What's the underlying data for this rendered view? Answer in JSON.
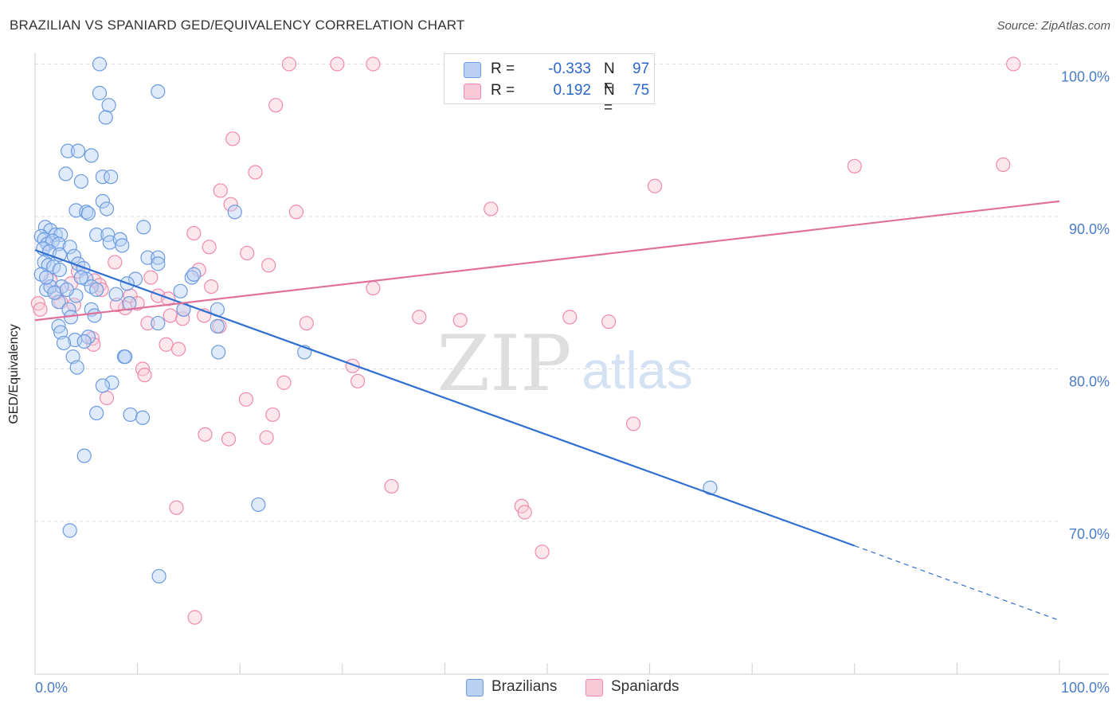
{
  "title": "BRAZILIAN VS SPANIARD GED/EQUIVALENCY CORRELATION CHART",
  "source": "Source: ZipAtlas.com",
  "watermark": {
    "zip": "ZIP",
    "atlas": "atlas"
  },
  "colors": {
    "blue": "#6b9be0",
    "blue_fill": "#b9d0f3",
    "blue_line": "#2f6fd1",
    "pink": "#f08aaa",
    "pink_fill": "#f9c9d7",
    "pink_line": "#e0709a",
    "tick": "#4a7cc9",
    "grid": "#dddddd"
  },
  "legend": {
    "rows": [
      {
        "r_label": "R =",
        "r_value": "-0.333",
        "n_label": "N =",
        "n_value": "97",
        "color": "#b9d0f3",
        "border": "#6b9be0"
      },
      {
        "r_label": "R =",
        "r_value": "0.192",
        "n_label": "N =",
        "n_value": "75",
        "color": "#f9c9d7",
        "border": "#f08aaa"
      }
    ]
  },
  "bottom_legend": [
    {
      "label": "Brazilians",
      "color": "#b9d0f3",
      "border": "#6b9be0"
    },
    {
      "label": "Spaniards",
      "color": "#f9c9d7",
      "border": "#f08aaa"
    }
  ],
  "chart_data": {
    "type": "scatter",
    "title": "BRAZILIAN VS SPANIARD GED/EQUIVALENCY CORRELATION CHART",
    "xlabel": "",
    "ylabel": "GED/Equivalency",
    "xlim": [
      0,
      100
    ],
    "ylim": [
      60,
      101
    ],
    "x_tick_labels": [
      "0.0%",
      "100.0%"
    ],
    "y_ticks": [
      70,
      80,
      90,
      100
    ],
    "y_tick_labels": [
      "70.0%",
      "80.0%",
      "90.0%",
      "100.0%"
    ],
    "grid": true,
    "legend_placement": "top-center",
    "series": [
      {
        "name": "Brazilians",
        "r": -0.333,
        "n": 97,
        "trend": {
          "x0": 0,
          "y0": 87.8,
          "x1": 80,
          "y1": 68.4,
          "dash_to_x": 100,
          "dash_to_y": 63.5
        },
        "points": [
          [
            6.3,
            100
          ],
          [
            6.3,
            98.1
          ],
          [
            12.0,
            98.2
          ],
          [
            7.2,
            97.3
          ],
          [
            6.9,
            96.5
          ],
          [
            3.2,
            94.3
          ],
          [
            4.2,
            94.3
          ],
          [
            5.5,
            94.0
          ],
          [
            3.0,
            92.8
          ],
          [
            6.6,
            92.6
          ],
          [
            7.4,
            92.6
          ],
          [
            4.5,
            92.3
          ],
          [
            6.6,
            91.0
          ],
          [
            7.0,
            90.5
          ],
          [
            4.0,
            90.4
          ],
          [
            5.0,
            90.3
          ],
          [
            5.2,
            90.2
          ],
          [
            19.5,
            90.3
          ],
          [
            1.0,
            89.3
          ],
          [
            1.5,
            89.1
          ],
          [
            2.0,
            88.8
          ],
          [
            2.5,
            88.8
          ],
          [
            6.0,
            88.8
          ],
          [
            7.1,
            88.8
          ],
          [
            10.6,
            89.3
          ],
          [
            0.6,
            88.7
          ],
          [
            0.9,
            88.5
          ],
          [
            1.2,
            88.2
          ],
          [
            1.7,
            88.4
          ],
          [
            2.3,
            88.2
          ],
          [
            3.4,
            88.0
          ],
          [
            7.3,
            88.3
          ],
          [
            8.3,
            88.5
          ],
          [
            8.5,
            88.1
          ],
          [
            0.8,
            87.9
          ],
          [
            1.4,
            87.7
          ],
          [
            2.4,
            87.5
          ],
          [
            3.8,
            87.4
          ],
          [
            11.0,
            87.3
          ],
          [
            12.0,
            87.3
          ],
          [
            0.9,
            87.0
          ],
          [
            1.3,
            86.8
          ],
          [
            1.8,
            86.7
          ],
          [
            2.4,
            86.5
          ],
          [
            4.2,
            86.9
          ],
          [
            4.7,
            86.6
          ],
          [
            5.0,
            85.9
          ],
          [
            12.0,
            86.9
          ],
          [
            9.8,
            85.9
          ],
          [
            15.3,
            86.0
          ],
          [
            15.5,
            86.2
          ],
          [
            1.1,
            85.2
          ],
          [
            1.5,
            85.4
          ],
          [
            2.6,
            85.4
          ],
          [
            5.5,
            85.4
          ],
          [
            6.0,
            85.2
          ],
          [
            14.2,
            85.1
          ],
          [
            4.0,
            84.8
          ],
          [
            2.3,
            84.4
          ],
          [
            3.3,
            83.9
          ],
          [
            5.5,
            83.9
          ],
          [
            9.2,
            84.3
          ],
          [
            14.5,
            83.9
          ],
          [
            17.8,
            83.9
          ],
          [
            3.5,
            83.4
          ],
          [
            12.0,
            83.0
          ],
          [
            2.3,
            82.8
          ],
          [
            17.8,
            82.8
          ],
          [
            2.5,
            82.4
          ],
          [
            5.2,
            82.1
          ],
          [
            3.9,
            81.9
          ],
          [
            2.8,
            81.7
          ],
          [
            4.8,
            81.8
          ],
          [
            17.9,
            81.1
          ],
          [
            26.3,
            81.1
          ],
          [
            8.7,
            80.8
          ],
          [
            3.7,
            80.8
          ],
          [
            8.8,
            80.8
          ],
          [
            4.1,
            80.1
          ],
          [
            7.5,
            79.1
          ],
          [
            6.6,
            78.9
          ],
          [
            9.3,
            77.0
          ],
          [
            10.5,
            76.8
          ],
          [
            6.0,
            77.1
          ],
          [
            4.8,
            74.3
          ],
          [
            21.8,
            71.1
          ],
          [
            65.9,
            72.2
          ],
          [
            3.4,
            69.4
          ],
          [
            12.1,
            66.4
          ],
          [
            0.6,
            86.2
          ],
          [
            1.1,
            86.0
          ],
          [
            1.9,
            85.0
          ],
          [
            3.1,
            85.2
          ],
          [
            4.5,
            86.0
          ],
          [
            5.8,
            83.5
          ],
          [
            7.9,
            84.9
          ],
          [
            9.0,
            85.6
          ]
        ]
      },
      {
        "name": "Spaniards",
        "r": 0.192,
        "n": 75,
        "trend": {
          "x0": 0,
          "y0": 83.2,
          "x1": 100,
          "y1": 91.0
        },
        "points": [
          [
            24.8,
            100
          ],
          [
            29.5,
            100
          ],
          [
            33.0,
            100
          ],
          [
            41.0,
            100
          ],
          [
            49.0,
            100
          ],
          [
            95.5,
            100
          ],
          [
            23.5,
            97.3
          ],
          [
            19.3,
            95.1
          ],
          [
            21.5,
            92.9
          ],
          [
            60.5,
            92.0
          ],
          [
            80.0,
            93.3
          ],
          [
            94.5,
            93.4
          ],
          [
            18.1,
            91.7
          ],
          [
            19.1,
            90.8
          ],
          [
            25.5,
            90.3
          ],
          [
            44.5,
            90.5
          ],
          [
            15.5,
            88.9
          ],
          [
            17.0,
            88.0
          ],
          [
            20.7,
            87.6
          ],
          [
            7.8,
            87.0
          ],
          [
            22.8,
            86.8
          ],
          [
            11.3,
            86.0
          ],
          [
            16.0,
            86.5
          ],
          [
            1.5,
            85.8
          ],
          [
            3.5,
            85.6
          ],
          [
            5.8,
            85.8
          ],
          [
            6.3,
            85.5
          ],
          [
            17.2,
            85.4
          ],
          [
            33.0,
            85.3
          ],
          [
            9.3,
            84.8
          ],
          [
            10.0,
            84.3
          ],
          [
            12.0,
            84.8
          ],
          [
            2.5,
            84.4
          ],
          [
            0.3,
            84.3
          ],
          [
            0.5,
            83.9
          ],
          [
            3.8,
            84.2
          ],
          [
            8.8,
            84.0
          ],
          [
            13.2,
            83.5
          ],
          [
            14.4,
            83.3
          ],
          [
            16.5,
            83.5
          ],
          [
            11.0,
            83.0
          ],
          [
            26.5,
            83.0
          ],
          [
            37.5,
            83.4
          ],
          [
            41.5,
            83.2
          ],
          [
            52.2,
            83.4
          ],
          [
            56.0,
            83.1
          ],
          [
            14.5,
            83.9
          ],
          [
            18.0,
            82.8
          ],
          [
            5.6,
            82.0
          ],
          [
            5.7,
            81.6
          ],
          [
            12.8,
            81.6
          ],
          [
            14.0,
            81.3
          ],
          [
            10.5,
            80.0
          ],
          [
            10.7,
            79.6
          ],
          [
            31.0,
            80.2
          ],
          [
            31.5,
            79.2
          ],
          [
            24.3,
            79.1
          ],
          [
            7.0,
            78.1
          ],
          [
            20.6,
            78.0
          ],
          [
            23.2,
            77.0
          ],
          [
            58.4,
            76.4
          ],
          [
            16.6,
            75.7
          ],
          [
            18.9,
            75.4
          ],
          [
            22.6,
            75.5
          ],
          [
            34.8,
            72.3
          ],
          [
            13.8,
            70.9
          ],
          [
            47.5,
            71.0
          ],
          [
            47.8,
            70.6
          ],
          [
            49.5,
            68.0
          ],
          [
            15.6,
            63.7
          ],
          [
            4.2,
            86.4
          ],
          [
            6.5,
            85.2
          ],
          [
            8.0,
            84.2
          ],
          [
            2.1,
            85.0
          ],
          [
            13.0,
            84.6
          ]
        ]
      }
    ]
  }
}
